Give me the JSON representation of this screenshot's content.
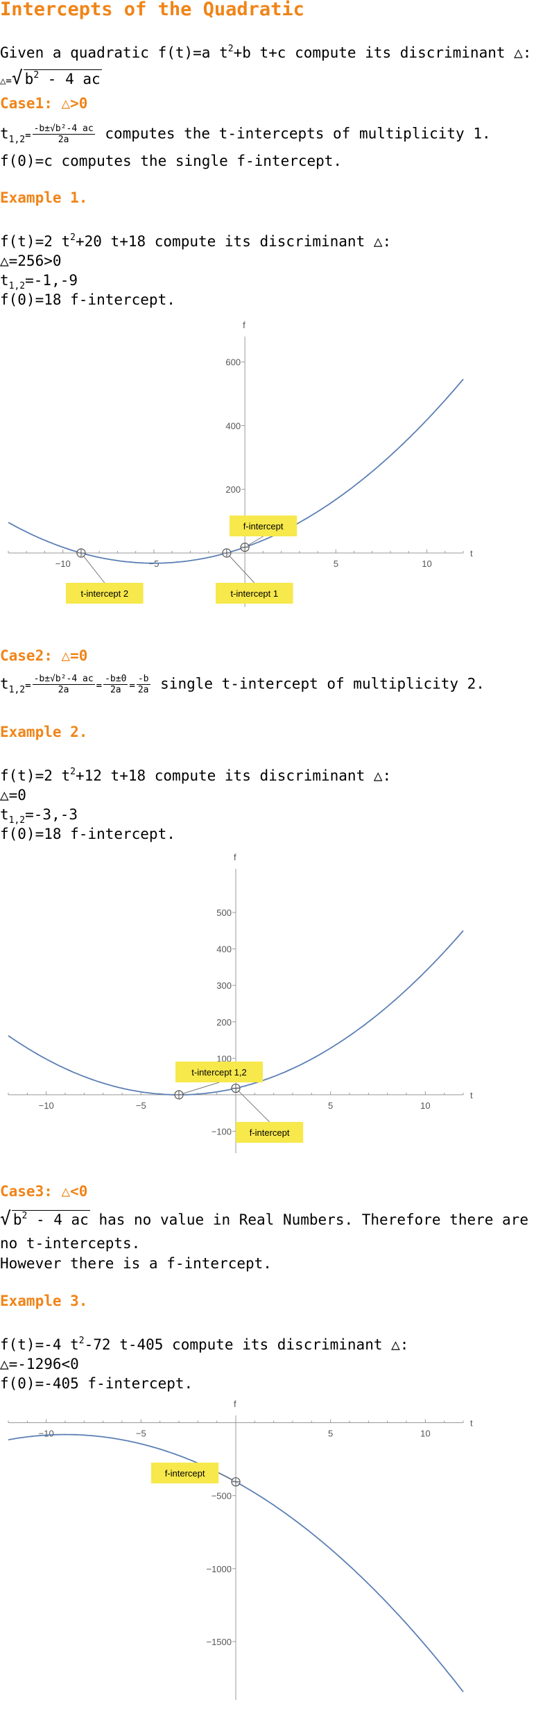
{
  "title": "Intercepts of the Quadratic",
  "intro": {
    "prefix": "Given a quadratic ",
    "func": "f(t)=a t",
    "func_sup": "2",
    "func_rest": "+b t+c",
    "suffix": " compute its discriminant △:",
    "disc_lhs": "△=",
    "disc_rad": "b",
    "disc_rad_sup": "2",
    "disc_rad_rest": " - 4 ac"
  },
  "case1": {
    "heading": "Case1: △>0",
    "t12_lhs": "t",
    "t12_sub": "1,2",
    "frac_num": "-b±√b²-4 ac",
    "frac_den": "2a",
    "t12_text": " computes the t-intercepts of multiplicity 1.",
    "f0_text": "f(0)=c computes the single f-intercept."
  },
  "example1": {
    "heading": "Example 1.",
    "f_prefix": "f(t)=2 t",
    "f_sup": "2",
    "f_rest": "+20 t+18 compute its discriminant △:",
    "disc": "△=256>0",
    "t12_lhs": "t",
    "t12_sub": "1,2",
    "t12_val": "=-1,-9",
    "f0": "f(0)=18  f-intercept."
  },
  "case2": {
    "heading": "Case2: △=0",
    "t12_lhs": "t",
    "t12_sub": "1,2",
    "frac1_num": "-b±√b²-4 ac",
    "frac1_den": "2a",
    "frac2_num": "-b±0",
    "frac2_den": "2a",
    "frac3_num": "-b",
    "frac3_den": "2a",
    "text": " single t-intercept of multiplicity 2."
  },
  "example2": {
    "heading": "Example 2.",
    "f_prefix": "f(t)=2 t",
    "f_sup": "2",
    "f_rest": "+12 t+18 compute its discriminant △:",
    "disc": "△=0",
    "t12_lhs": "t",
    "t12_sub": "1,2",
    "t12_val": "=-3,-3",
    "f0": "f(0)=18  f-intercept."
  },
  "case3": {
    "heading": "Case3: △<0",
    "rad": "b",
    "rad_sup": "2",
    "rad_rest": " - 4 ac",
    "line1_rest": " has no value in Real Numbers. Therefore there are",
    "line2": "no t-intercepts.",
    "line3": "However there is a f-intercept."
  },
  "example3": {
    "heading": "Example 3.",
    "f_prefix": "f(t)=-4 t",
    "f_sup": "2",
    "f_rest": "-72 t-405 compute its discriminant △:",
    "disc": "△=-1296<0",
    "f0": "f(0)=-405 f-intercept."
  },
  "chart_data": [
    {
      "type": "line",
      "function": "2 t^2 + 20 t + 18",
      "xlabel": "t",
      "ylabel": "f",
      "xlim": [
        -13,
        12
      ],
      "ylim": [
        -170,
        680
      ],
      "xticks": [
        -10,
        -5,
        5,
        10
      ],
      "yticks": [
        200,
        400,
        600
      ],
      "series": [
        {
          "x": [
            -13,
            -10,
            -5,
            0,
            5,
            10,
            12
          ],
          "y": [
            96,
            18,
            -32,
            18,
            168,
            418,
            546
          ]
        }
      ],
      "points": [
        {
          "label": "t-intercept 2",
          "x": -9,
          "y": 0
        },
        {
          "label": "t-intercept 1",
          "x": -1,
          "y": 0
        },
        {
          "label": "f-intercept",
          "x": 0,
          "y": 18
        }
      ],
      "color": "#5b7fb5"
    },
    {
      "type": "line",
      "function": "2 t^2 + 12 t + 18",
      "xlabel": "t",
      "ylabel": "f",
      "xlim": [
        -12,
        12
      ],
      "ylim": [
        -160,
        620
      ],
      "xticks": [
        -10,
        -5,
        5,
        10
      ],
      "yticks": [
        -100,
        100,
        200,
        300,
        400,
        500
      ],
      "series": [
        {
          "x": [
            -12,
            -10,
            -5,
            0,
            5,
            10,
            12
          ],
          "y": [
            162,
            98,
            8,
            18,
            128,
            338,
            450
          ]
        }
      ],
      "points": [
        {
          "label": "t-intercept 1,2",
          "x": -3,
          "y": 0
        },
        {
          "label": "f-intercept",
          "x": 0,
          "y": 18
        }
      ],
      "color": "#5b7fb5"
    },
    {
      "type": "line",
      "function": -1,
      "function_text": "-4 t^2 - 72 t - 405",
      "xlabel": "t",
      "ylabel": "f",
      "xlim": [
        -12,
        12
      ],
      "ylim": [
        -1900,
        50
      ],
      "xticks": [
        -10,
        -5,
        5,
        10
      ],
      "yticks": [
        -500,
        -1000,
        -1500
      ],
      "series": [
        {
          "x": [
            -12,
            -9,
            -5,
            0,
            5,
            10,
            12
          ],
          "y": [
            -117,
            -81,
            -145,
            -405,
            -865,
            -1525,
            -1845
          ]
        }
      ],
      "points": [
        {
          "label": "f-intercept",
          "x": 0,
          "y": -405
        }
      ],
      "color": "#5b7fb5"
    }
  ]
}
